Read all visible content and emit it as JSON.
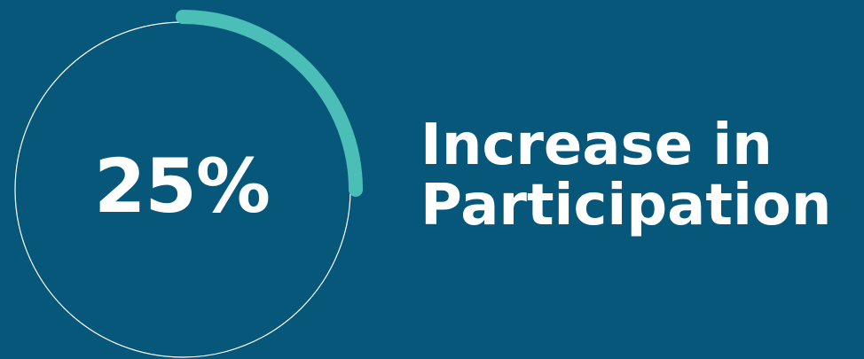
{
  "stat": {
    "value_text": "25%",
    "progress_percent": 25,
    "label_line1": "Increase in",
    "label_line2": "Participation"
  },
  "colors": {
    "background": "#06577a",
    "ring_track": "#ffffff",
    "ring_progress": "#4bbfb7",
    "text": "#ffffff"
  }
}
